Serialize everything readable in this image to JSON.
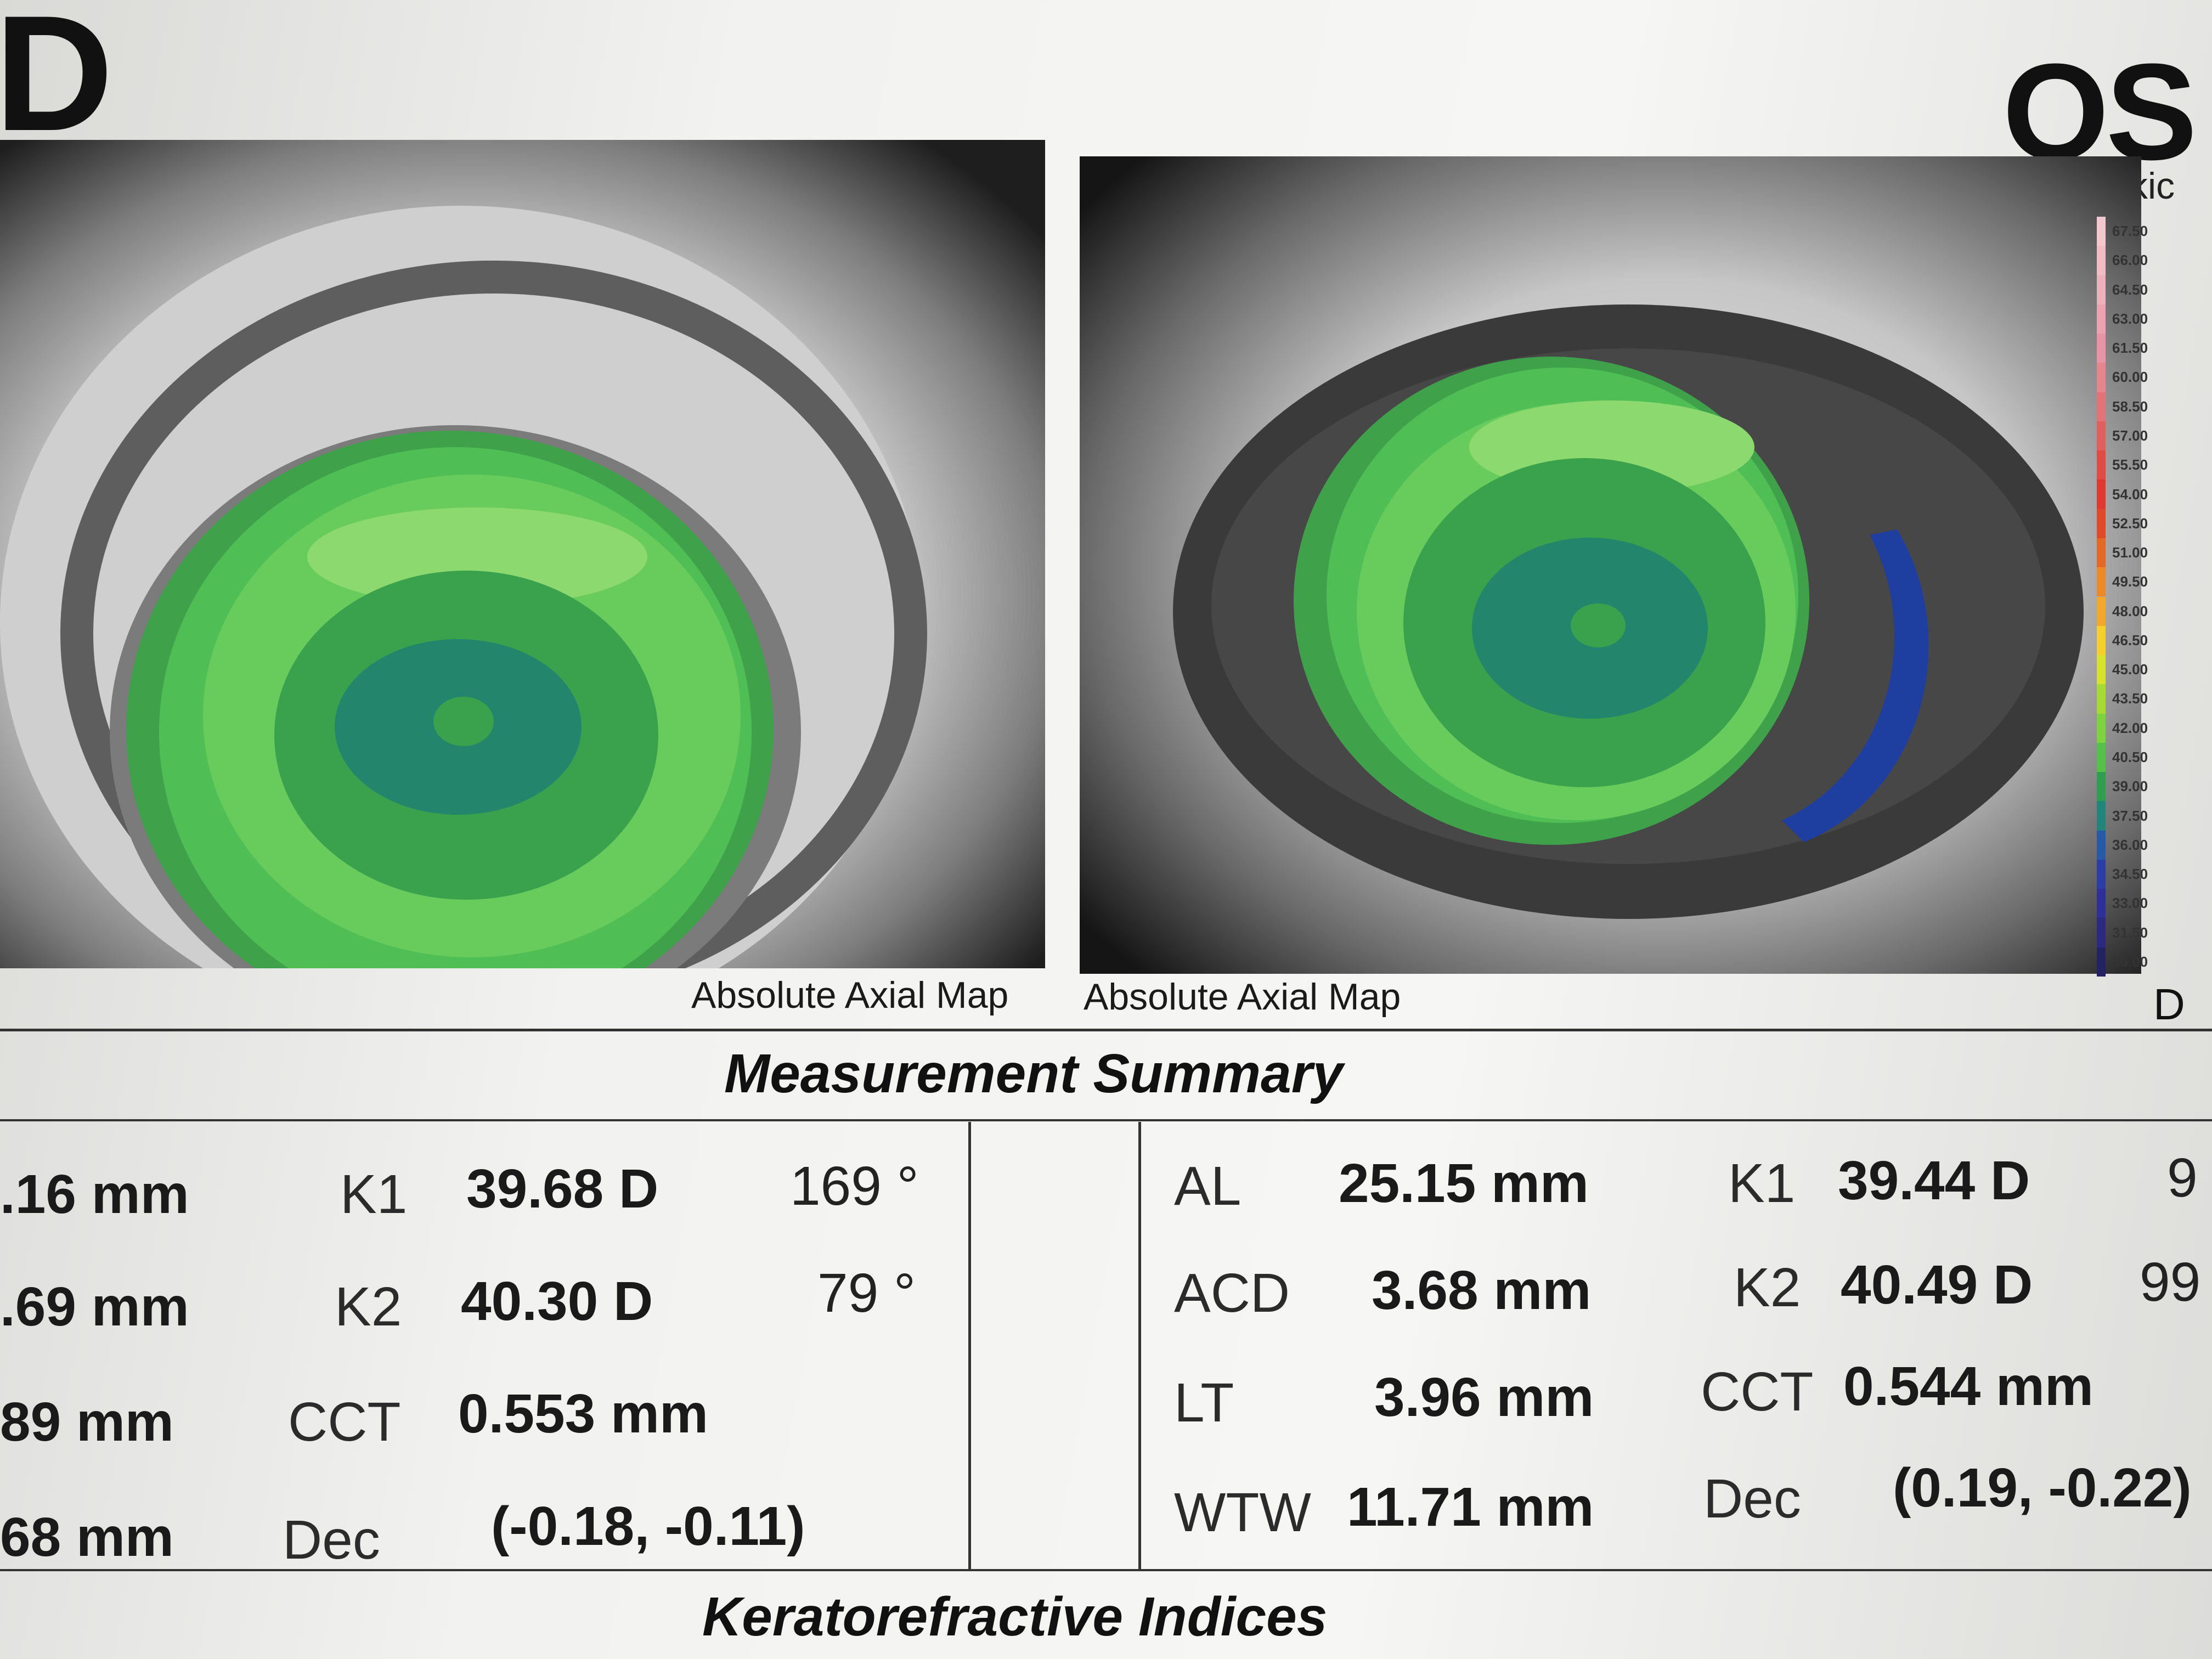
{
  "header": {
    "corner_letter": "D",
    "eye": "OS",
    "lens_status": "Phakic"
  },
  "maps": {
    "left_caption": "Absolute Axial Map",
    "right_caption": "Absolute Axial Map"
  },
  "color_scale": {
    "letter": "D",
    "entries": [
      {
        "label": "67.50",
        "color": "#f3c7cf"
      },
      {
        "label": "66.00",
        "color": "#f1bcc6"
      },
      {
        "label": "64.50",
        "color": "#eeb0bd"
      },
      {
        "label": "63.00",
        "color": "#eba2b2"
      },
      {
        "label": "61.50",
        "color": "#e894a6"
      },
      {
        "label": "60.00",
        "color": "#e5868f"
      },
      {
        "label": "58.50",
        "color": "#e27378"
      },
      {
        "label": "57.00",
        "color": "#e06060"
      },
      {
        "label": "55.50",
        "color": "#e04b44"
      },
      {
        "label": "54.00",
        "color": "#df3a2f"
      },
      {
        "label": "52.50",
        "color": "#e04a28"
      },
      {
        "label": "51.00",
        "color": "#e3682a"
      },
      {
        "label": "49.50",
        "color": "#ec8a2a"
      },
      {
        "label": "48.00",
        "color": "#f3a72b"
      },
      {
        "label": "46.50",
        "color": "#f5cf2a"
      },
      {
        "label": "45.00",
        "color": "#d6e32a"
      },
      {
        "label": "43.50",
        "color": "#a7db34"
      },
      {
        "label": "42.00",
        "color": "#7dd23f"
      },
      {
        "label": "40.50",
        "color": "#54c14a"
      },
      {
        "label": "39.00",
        "color": "#2e9f4e"
      },
      {
        "label": "37.50",
        "color": "#22857a"
      },
      {
        "label": "36.00",
        "color": "#265aa6"
      },
      {
        "label": "34.50",
        "color": "#2a3ea6"
      },
      {
        "label": "33.00",
        "color": "#2f2f99"
      },
      {
        "label": "31.50",
        "color": "#2c2a80"
      },
      {
        "label": "30.00",
        "color": "#242262"
      }
    ]
  },
  "measurement_summary": {
    "title": "Measurement Summary",
    "left": {
      "col1": [
        ".16 mm",
        ".69 mm",
        "89 mm",
        "68 mm"
      ],
      "k1_label": "K1",
      "k1_value": "39.68 D",
      "k1_axis": "169 °",
      "k2_label": "K2",
      "k2_value": "40.30 D",
      "k2_axis": "79 °",
      "cct_label": "CCT",
      "cct_value": "0.553 mm",
      "dec_label": "Dec",
      "dec_value": "(-0.18, -0.11)"
    },
    "right": {
      "al_label": "AL",
      "al_value": "25.15 mm",
      "acd_label": "ACD",
      "acd_value": "3.68 mm",
      "lt_label": "LT",
      "lt_value": "3.96 mm",
      "wtw_label": "WTW",
      "wtw_value": "11.71 mm",
      "k1_label": "K1",
      "k1_value": "39.44 D",
      "k1_axis": "9",
      "k2_label": "K2",
      "k2_value": "40.49 D",
      "k2_axis": "99",
      "cct_label": "CCT",
      "cct_value": "0.544 mm",
      "dec_label": "Dec",
      "dec_value": "(0.19, -0.22)"
    }
  },
  "keratorefractive": {
    "title": "Keratorefractive Indices"
  }
}
